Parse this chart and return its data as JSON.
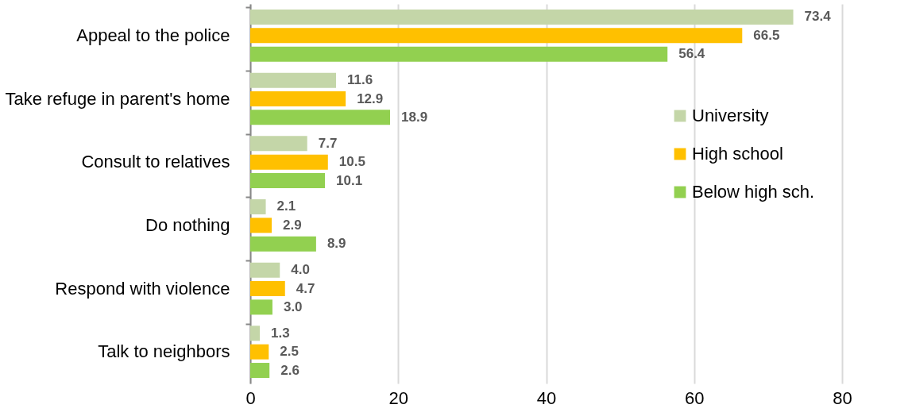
{
  "chart_data": {
    "type": "bar",
    "orientation": "horizontal",
    "categories": [
      "Appeal to the police",
      "Take refuge in parent's home",
      "Consult to relatives",
      "Do nothing",
      "Respond with violence",
      "Talk to neighbors"
    ],
    "series": [
      {
        "name": "University",
        "color": "#c4d6a8",
        "values": [
          73.4,
          11.6,
          7.7,
          2.1,
          4.0,
          1.3
        ],
        "value_labels": [
          "73.4",
          "11.6",
          "7.7",
          "2.1",
          "4.0",
          "1.3"
        ]
      },
      {
        "name": "High school",
        "color": "#ffc000",
        "values": [
          66.5,
          12.9,
          10.5,
          2.9,
          4.7,
          2.5
        ],
        "value_labels": [
          "66.5",
          "12.9",
          "10.5",
          "2.9",
          "4.7",
          "2.5"
        ]
      },
      {
        "name": "Below high sch.",
        "color": "#92d050",
        "values": [
          56.4,
          18.9,
          10.1,
          8.9,
          3.0,
          2.6
        ],
        "value_labels": [
          "56.4",
          "18.9",
          "10.1",
          "8.9",
          "3.0",
          "2.6"
        ]
      }
    ],
    "xlim": [
      0,
      80
    ],
    "xticks": [
      0,
      20,
      40,
      60,
      80
    ],
    "grid": "x",
    "legend": "right"
  }
}
